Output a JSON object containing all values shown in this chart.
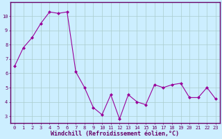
{
  "x": [
    0,
    1,
    2,
    3,
    4,
    5,
    6,
    7,
    8,
    9,
    10,
    11,
    12,
    13,
    14,
    15,
    16,
    17,
    18,
    19,
    20,
    21,
    22,
    23
  ],
  "y": [
    6.5,
    7.8,
    8.5,
    9.5,
    10.3,
    10.2,
    10.3,
    6.1,
    5.0,
    3.6,
    3.1,
    4.5,
    2.8,
    4.5,
    4.0,
    3.8,
    5.2,
    5.0,
    5.2,
    5.3,
    4.3,
    4.3,
    5.0,
    4.2
  ],
  "line_color": "#990099",
  "marker": "D",
  "marker_size": 2.0,
  "bg_color": "#cceeff",
  "grid_color": "#aacccc",
  "xlabel": "Windchill (Refroidissement éolien,°C)",
  "xlabel_color": "#660066",
  "ylim": [
    2.5,
    11.0
  ],
  "xlim": [
    -0.5,
    23.5
  ],
  "yticks": [
    3,
    4,
    5,
    6,
    7,
    8,
    9,
    10
  ],
  "xticks": [
    0,
    1,
    2,
    3,
    4,
    5,
    6,
    7,
    8,
    9,
    10,
    11,
    12,
    13,
    14,
    15,
    16,
    17,
    18,
    19,
    20,
    21,
    22,
    23
  ],
  "tick_label_color": "#660066",
  "tick_fontsize": 5.0,
  "xlabel_fontsize": 6.0,
  "spine_color": "#660066",
  "spine_linewidth": 1.0
}
